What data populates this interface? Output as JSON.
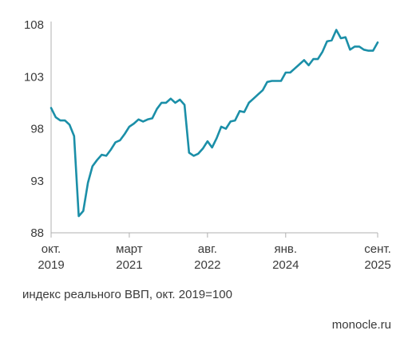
{
  "caption": "индекс реального ВВП, окт. 2019=100",
  "source": "monocle.ru",
  "chart_data": {
    "type": "line",
    "title": "",
    "xlabel": "",
    "ylabel": "индекс реального ВВП, окт. 2019=100",
    "ylim": [
      88,
      108
    ],
    "yticks": [
      88,
      93,
      98,
      103,
      108
    ],
    "xlim": [
      "2019-10",
      "2025-09"
    ],
    "xticks": [
      {
        "x": "2019-10",
        "line1": "окт.",
        "line2": "2019"
      },
      {
        "x": "2021-03",
        "line1": "март",
        "line2": "2021"
      },
      {
        "x": "2022-08",
        "line1": "авг.",
        "line2": "2022"
      },
      {
        "x": "2024-01",
        "line1": "янв.",
        "line2": "2024"
      },
      {
        "x": "2025-09",
        "line1": "сент.",
        "line2": "2025"
      }
    ],
    "grid": false,
    "color": "#1b8fa8",
    "series": [
      {
        "name": "",
        "x": [
          "2019-10",
          "2019-11",
          "2019-12",
          "2020-01",
          "2020-02",
          "2020-03",
          "2020-04",
          "2020-05",
          "2020-06",
          "2020-07",
          "2020-08",
          "2020-09",
          "2020-10",
          "2020-11",
          "2020-12",
          "2021-01",
          "2021-02",
          "2021-03",
          "2021-04",
          "2021-05",
          "2021-06",
          "2021-07",
          "2021-08",
          "2021-09",
          "2021-10",
          "2021-11",
          "2021-12",
          "2022-01",
          "2022-02",
          "2022-03",
          "2022-04",
          "2022-05",
          "2022-06",
          "2022-07",
          "2022-08",
          "2022-09",
          "2022-10",
          "2022-11",
          "2022-12",
          "2023-01",
          "2023-02",
          "2023-03",
          "2023-04",
          "2023-05",
          "2023-06",
          "2023-07",
          "2023-08",
          "2023-09",
          "2023-10",
          "2023-11",
          "2023-12",
          "2024-01",
          "2024-02",
          "2024-03",
          "2024-04",
          "2024-05",
          "2024-06",
          "2024-07",
          "2024-08",
          "2024-09",
          "2024-10",
          "2024-11",
          "2024-12",
          "2025-01",
          "2025-02",
          "2025-03",
          "2025-04",
          "2025-05",
          "2025-06",
          "2025-07",
          "2025-08",
          "2025-09"
        ],
        "values": [
          100.0,
          99.1,
          98.8,
          98.8,
          98.4,
          97.3,
          89.6,
          90.1,
          92.8,
          94.4,
          95.0,
          95.5,
          95.4,
          96.0,
          96.7,
          96.9,
          97.5,
          98.2,
          98.5,
          98.9,
          98.7,
          98.9,
          99.0,
          99.9,
          100.5,
          100.5,
          100.9,
          100.5,
          100.8,
          100.3,
          95.7,
          95.4,
          95.6,
          96.1,
          96.8,
          96.2,
          97.1,
          98.2,
          98.0,
          98.7,
          98.8,
          99.7,
          99.6,
          100.5,
          100.9,
          101.3,
          101.7,
          102.5,
          102.6,
          102.6,
          102.6,
          103.4,
          103.4,
          103.8,
          104.2,
          104.6,
          104.1,
          104.7,
          104.7,
          105.4,
          106.4,
          106.5,
          107.5,
          106.7,
          106.8,
          105.6,
          105.9,
          105.9,
          105.6,
          105.5,
          105.5,
          106.3
        ]
      }
    ]
  }
}
